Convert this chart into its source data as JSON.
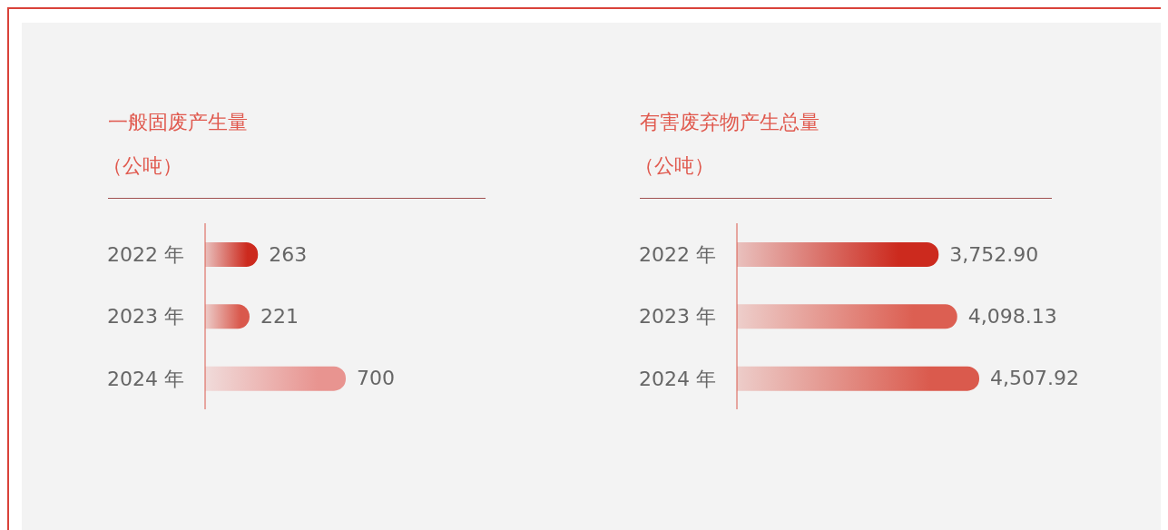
{
  "chart_data": [
    {
      "type": "bar",
      "orientation": "horizontal",
      "title": "一般固废产生量",
      "subtitle": "（公吨）",
      "categories": [
        "2022 年",
        "2023 年",
        "2024 年"
      ],
      "values": [
        263,
        221,
        700
      ],
      "colors": [
        "#cc2a1e",
        "#d9584c",
        "#e89490"
      ],
      "data_labels": true
    },
    {
      "type": "bar",
      "orientation": "horizontal",
      "title": "有害废弃物产生总量",
      "subtitle": "（公吨）",
      "categories": [
        "2022 年",
        "2023 年",
        "2024 年"
      ],
      "values": [
        3752.9,
        4098.13,
        4507.92
      ],
      "colors": [
        "#cc2a1e",
        "#dc5f52",
        "#da5a4d"
      ],
      "value_labels": [
        "3,752.90",
        "4,098.13",
        "4,507.92"
      ]
    }
  ]
}
